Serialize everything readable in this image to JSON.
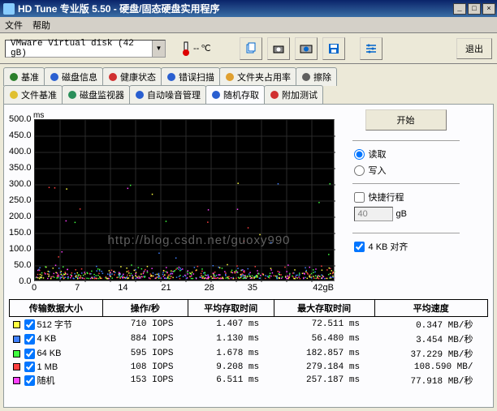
{
  "title": "HD Tune 专业版 5.50 - 硬盘/固态硬盘实用程序",
  "menu": {
    "file": "文件",
    "help": "帮助"
  },
  "device": "VMware Virtual disk (42 gB)",
  "temp": {
    "value": "--",
    "unit": "℃"
  },
  "exit": "退出",
  "tabs_row1": [
    {
      "label": "基准",
      "icon": "#2b7f2b"
    },
    {
      "label": "磁盘信息",
      "icon": "#2a5fd0"
    },
    {
      "label": "健康状态",
      "icon": "#d03030"
    },
    {
      "label": "错误扫描",
      "icon": "#2a5fd0"
    },
    {
      "label": "文件夹占用率",
      "icon": "#e0a030"
    },
    {
      "label": "擦除",
      "icon": "#606060"
    }
  ],
  "tabs_row2": [
    {
      "label": "文件基准",
      "icon": "#e0c030"
    },
    {
      "label": "磁盘监视器",
      "icon": "#2a8f5a"
    },
    {
      "label": "自动噪音管理",
      "icon": "#2a5fd0"
    },
    {
      "label": "随机存取",
      "icon": "#2a5fd0",
      "active": true
    },
    {
      "label": "附加测试",
      "icon": "#d03030"
    }
  ],
  "chart": {
    "yunit": "ms",
    "ymax": 500,
    "ytick": 50,
    "ylabels": [
      "500.0",
      "450.0",
      "400.0",
      "350.0",
      "300.0",
      "250.0",
      "200.0",
      "150.0",
      "100.0",
      "  50.0",
      "    0.0"
    ],
    "xlabels": [
      "0",
      "7",
      "14",
      "21",
      "28",
      "35",
      "42gB"
    ],
    "bg": "#000000",
    "grid": "#2a2a2a",
    "scatter_colors": [
      "#ffff40",
      "#4080ff",
      "#40ff40",
      "#ff4040",
      "#ff40ff"
    ]
  },
  "controls": {
    "start": "开始",
    "read": "读取",
    "write": "写入",
    "fastroute": "快捷行程",
    "fastroute_val": "40",
    "gb": "gB",
    "align": "4 KB 对齐",
    "read_checked": true,
    "write_checked": false,
    "fastroute_checked": false,
    "align_checked": true
  },
  "table": {
    "headers": [
      "传输数据大小",
      "操作/秒",
      "平均存取时间",
      "最大存取时间",
      "平均速度"
    ],
    "rows": [
      {
        "sw": "#ffff40",
        "size": "512 字节",
        "iops": "710 IOPS",
        "avg": "1.407 ms",
        "max": "72.511 ms",
        "speed": "0.347 MB/秒",
        "chk": true
      },
      {
        "sw": "#4080ff",
        "size": "4 KB",
        "iops": "884 IOPS",
        "avg": "1.130 ms",
        "max": "56.480 ms",
        "speed": "3.454 MB/秒",
        "chk": true
      },
      {
        "sw": "#40ff40",
        "size": "64 KB",
        "iops": "595 IOPS",
        "avg": "1.678 ms",
        "max": "182.857 ms",
        "speed": "37.229 MB/秒",
        "chk": true
      },
      {
        "sw": "#ff4040",
        "size": "1 MB",
        "iops": "108 IOPS",
        "avg": "9.208 ms",
        "max": "279.184 ms",
        "speed": "108.590 MB/",
        "chk": true
      },
      {
        "sw": "#ff40ff",
        "size": "随机",
        "iops": "153 IOPS",
        "avg": "6.511 ms",
        "max": "257.187 ms",
        "speed": "77.918 MB/秒",
        "chk": true
      }
    ]
  },
  "watermark": "http://blog.csdn.net/guoxy990"
}
